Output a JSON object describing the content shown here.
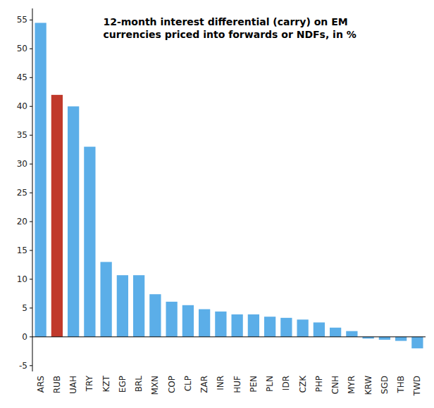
{
  "chart_data": {
    "type": "bar",
    "title": "12-month interest differential (carry) on EM\ncurrencies priced into forwards or NDFs, in %",
    "categories": [
      "ARS",
      "RUB",
      "UAH",
      "TRY",
      "KZT",
      "EGP",
      "BRL",
      "MXN",
      "COP",
      "CLP",
      "ZAR",
      "INR",
      "HUF",
      "PEN",
      "PLN",
      "IDR",
      "CZK",
      "PHP",
      "CNH",
      "MYR",
      "KRW",
      "SGD",
      "THB",
      "TWD"
    ],
    "values": [
      54.5,
      42.0,
      40.0,
      33.0,
      13.0,
      10.7,
      10.7,
      7.4,
      6.1,
      5.5,
      4.8,
      4.4,
      3.9,
      3.9,
      3.5,
      3.3,
      3.0,
      2.5,
      1.6,
      1.0,
      -0.3,
      -0.5,
      -0.7,
      -2.0
    ],
    "colors": [
      "#5baee8",
      "#c0392b",
      "#5baee8",
      "#5baee8",
      "#5baee8",
      "#5baee8",
      "#5baee8",
      "#5baee8",
      "#5baee8",
      "#5baee8",
      "#5baee8",
      "#5baee8",
      "#5baee8",
      "#5baee8",
      "#5baee8",
      "#5baee8",
      "#5baee8",
      "#5baee8",
      "#5baee8",
      "#5baee8",
      "#5baee8",
      "#5baee8",
      "#5baee8",
      "#5baee8"
    ],
    "ylim": [
      -6,
      57
    ],
    "yticks": [
      -5,
      0,
      5,
      10,
      15,
      20,
      25,
      30,
      35,
      40,
      45,
      50,
      55
    ],
    "grid": false
  }
}
